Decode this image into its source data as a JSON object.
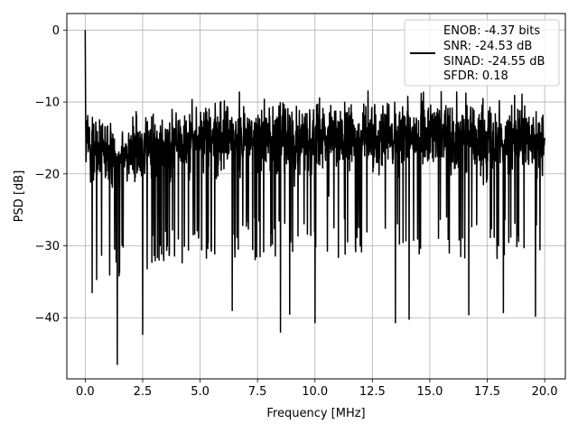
{
  "chart_data": {
    "type": "line",
    "title": "",
    "xlabel": "Frequency [MHz]",
    "ylabel": "PSD [dB]",
    "xlim": [
      -0.8,
      20.9
    ],
    "ylim": [
      -48.5,
      2.3
    ],
    "xticks": [
      0.0,
      2.5,
      5.0,
      7.5,
      10.0,
      12.5,
      15.0,
      17.5,
      20.0
    ],
    "xtick_labels": [
      "0.0",
      "2.5",
      "5.0",
      "7.5",
      "10.0",
      "12.5",
      "15.0",
      "17.5",
      "20.0"
    ],
    "yticks": [
      0,
      -10,
      -20,
      -30,
      -40
    ],
    "ytick_labels": [
      "0",
      "−10",
      "−20",
      "−30",
      "−40"
    ],
    "grid": true,
    "legend_position": "top-right",
    "series": [
      {
        "color": "#000000",
        "legend_lines": [
          "ENOB: -4.37 bits",
          "SNR: -24.53 dB",
          "SINAD: -24.55 dB",
          "SFDR: 0.18"
        ],
        "description": "dense noise-like power spectral density trace",
        "x_range": [
          0.0,
          20.0
        ],
        "num_points": 2048,
        "peak": {
          "x": 0.0,
          "y": 0.0
        },
        "notable_minima": [
          {
            "x": 0.3,
            "y": -36.5
          },
          {
            "x": 1.4,
            "y": -46.5
          },
          {
            "x": 2.5,
            "y": -42.3
          },
          {
            "x": 6.4,
            "y": -39.0
          },
          {
            "x": 8.5,
            "y": -42.0
          },
          {
            "x": 8.9,
            "y": -39.5
          },
          {
            "x": 10.0,
            "y": -40.7
          },
          {
            "x": 13.5,
            "y": -40.7
          },
          {
            "x": 14.1,
            "y": -40.2
          },
          {
            "x": 16.7,
            "y": -39.6
          },
          {
            "x": 18.2,
            "y": -39.3
          },
          {
            "x": 19.6,
            "y": -39.8
          }
        ],
        "envelope": {
          "x": [
            0.0,
            0.5,
            1.0,
            2.0,
            3.0,
            4.0,
            5.0,
            7.5,
            10.0,
            12.5,
            15.0,
            17.5,
            20.0
          ],
          "upper": [
            0.0,
            -9.0,
            -10.5,
            -10.5,
            -9.5,
            -7.5,
            -6.5,
            -6.5,
            -6.0,
            -6.0,
            -5.0,
            -6.5,
            -6.5
          ],
          "median": [
            -15.0,
            -17.0,
            -17.5,
            -17.0,
            -16.5,
            -15.5,
            -15.0,
            -15.0,
            -15.0,
            -15.0,
            -14.5,
            -15.0,
            -16.0
          ],
          "lower": [
            -25.0,
            -30.0,
            -30.5,
            -29.0,
            -28.0,
            -27.0,
            -26.0,
            -26.0,
            -26.0,
            -26.0,
            -26.0,
            -26.0,
            -26.0
          ]
        }
      }
    ]
  }
}
